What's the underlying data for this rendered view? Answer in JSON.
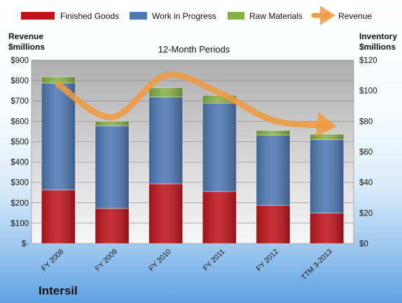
{
  "company": "Intersil",
  "chart_data": {
    "type": "bar",
    "stacked": true,
    "title": "12-Month Periods",
    "categories": [
      "FY 2008",
      "FY 2009",
      "FY 2010",
      "FY 2011",
      "FY 2012",
      "TTM 3-2013"
    ],
    "series": [
      {
        "name": "Finished Goods",
        "color": "#c0141d",
        "axis": "right",
        "values": [
          35,
          23,
          39,
          34,
          25,
          20
        ]
      },
      {
        "name": "Work in Progress",
        "color": "#4f79b5",
        "axis": "right",
        "values": [
          70,
          54,
          57,
          58,
          46,
          48
        ]
      },
      {
        "name": "Raw Materials",
        "color": "#86b046",
        "axis": "right",
        "values": [
          4,
          3,
          6,
          5,
          3,
          3.5
        ]
      },
      {
        "name": "Revenue",
        "color": "#f19a3f",
        "type": "line",
        "axis": "left",
        "values": [
          780,
          620,
          825,
          740,
          605,
          580
        ]
      }
    ],
    "left_axis": {
      "title_line1": "Revenue",
      "title_line2": "$millions",
      "range": [
        0,
        900
      ],
      "ticks": [
        "$-",
        "$100",
        "$200",
        "$300",
        "$400",
        "$500",
        "$600",
        "$700",
        "$800",
        "$900"
      ]
    },
    "right_axis": {
      "title_line1": "Inventory",
      "title_line2": "$millions",
      "range": [
        0,
        120
      ],
      "ticks": [
        "$0",
        "$20",
        "$40",
        "$60",
        "$80",
        "$100",
        "$120"
      ]
    },
    "grid": true,
    "legend_position": "top"
  }
}
